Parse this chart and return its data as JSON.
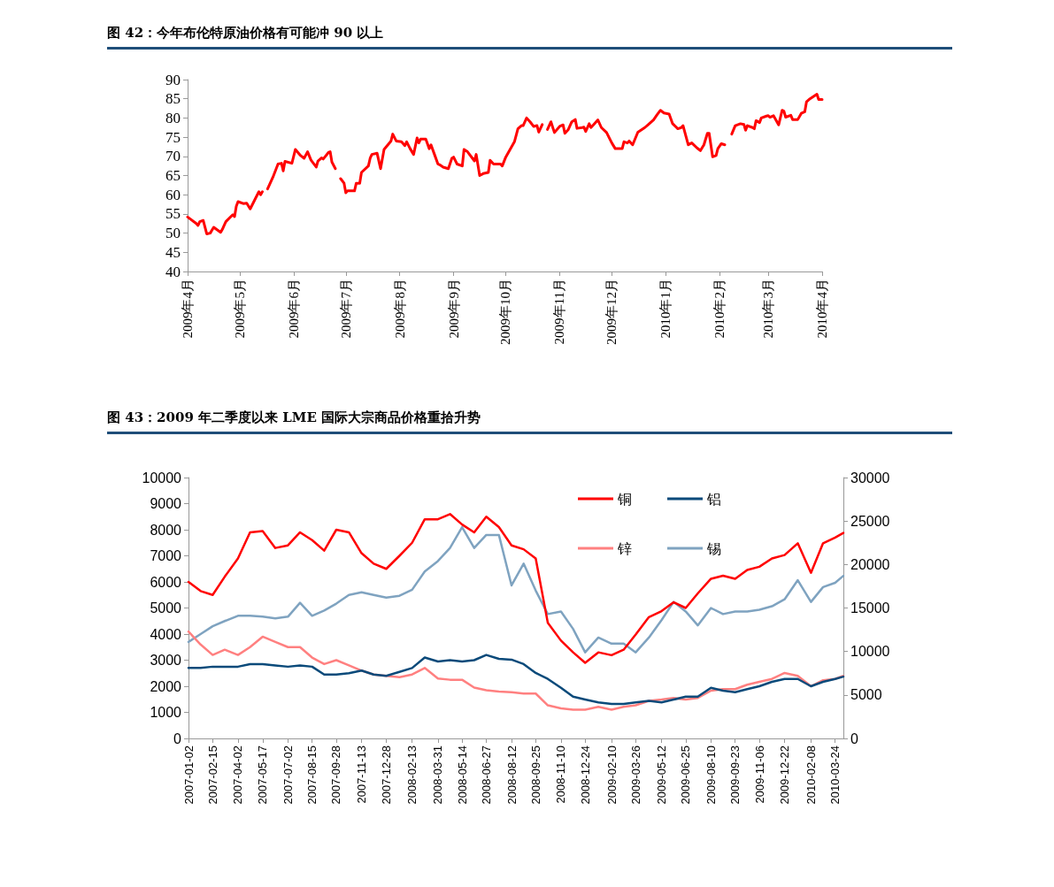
{
  "chart_data": [
    {
      "type": "line",
      "title": "图 42：今年布伦特原油价格有可能冲 90 以上",
      "marker": "none",
      "x": [
        "2009-04-01",
        "2009-04-06",
        "2009-04-07",
        "2009-04-08",
        "2009-04-10",
        "2009-04-12",
        "2009-04-14",
        "2009-04-16",
        "2009-04-20",
        "2009-04-21",
        "2009-04-23",
        "2009-04-27",
        "2009-04-28",
        "2009-04-29",
        "2009-04-30",
        "2009-05-03",
        "2009-05-05",
        "2009-05-07",
        "2009-05-10",
        "2009-05-12",
        "2009-05-13",
        "2009-05-14",
        "2009-05-16",
        "2009-05-17",
        "2009-05-20",
        "2009-05-23",
        "2009-05-25",
        "2009-05-26",
        "2009-05-27",
        "2009-05-31",
        "2009-06-02",
        "2009-06-05",
        "2009-06-07",
        "2009-06-09",
        "2009-06-11",
        "2009-06-14",
        "2009-06-15",
        "2009-06-17",
        "2009-06-18",
        "2009-06-21",
        "2009-06-22",
        "2009-06-23",
        "2009-06-25",
        "2009-06-27",
        "2009-06-28",
        "2009-06-30",
        "2009-07-01",
        "2009-07-02",
        "2009-07-06",
        "2009-07-07",
        "2009-07-09",
        "2009-07-10",
        "2009-07-14",
        "2009-07-15",
        "2009-07-16",
        "2009-07-19",
        "2009-07-21",
        "2009-07-23",
        "2009-07-27",
        "2009-07-28",
        "2009-07-30",
        "2009-08-02",
        "2009-08-04",
        "2009-08-05",
        "2009-08-07",
        "2009-08-09",
        "2009-08-11",
        "2009-08-12",
        "2009-08-13",
        "2009-08-16",
        "2009-08-18",
        "2009-08-19",
        "2009-08-21",
        "2009-08-23",
        "2009-08-24",
        "2009-08-26",
        "2009-08-29",
        "2009-08-31",
        "2009-09-01",
        "2009-09-03",
        "2009-09-06",
        "2009-09-07",
        "2009-09-09",
        "2009-09-13",
        "2009-09-14",
        "2009-09-16",
        "2009-09-18",
        "2009-09-21",
        "2009-09-22",
        "2009-09-24",
        "2009-09-28",
        "2009-09-29",
        "2009-10-01",
        "2009-10-06",
        "2009-10-08",
        "2009-10-10",
        "2009-10-11",
        "2009-10-13",
        "2009-10-15",
        "2009-10-17",
        "2009-10-19",
        "2009-10-20",
        "2009-10-22",
        "2009-10-24",
        "2009-10-25",
        "2009-10-27",
        "2009-10-29",
        "2009-11-01",
        "2009-11-03",
        "2009-11-04",
        "2009-11-06",
        "2009-11-08",
        "2009-11-10",
        "2009-11-11",
        "2009-11-14",
        "2009-11-15",
        "2009-11-16",
        "2009-11-18",
        "2009-11-19",
        "2009-11-21",
        "2009-11-23",
        "2009-11-25",
        "2009-11-28",
        "2009-12-01",
        "2009-12-03",
        "2009-12-07",
        "2009-12-08",
        "2009-12-10",
        "2009-12-11",
        "2009-12-13",
        "2009-12-16",
        "2009-12-20",
        "2009-12-22",
        "2009-12-25",
        "2009-12-27",
        "2009-12-29",
        "2009-12-31",
        "2010-01-03",
        "2010-01-05",
        "2010-01-08",
        "2010-01-10",
        "2010-01-11",
        "2010-01-14",
        "2010-01-16",
        "2010-01-19",
        "2010-01-21",
        "2010-01-23",
        "2010-01-25",
        "2010-01-26",
        "2010-01-28",
        "2010-01-30",
        "2010-01-31",
        "2010-02-02",
        "2010-02-04",
        "2010-02-06",
        "2010-02-08",
        "2010-02-10",
        "2010-02-13",
        "2010-02-15",
        "2010-02-16",
        "2010-02-17",
        "2010-02-20",
        "2010-02-21",
        "2010-02-22",
        "2010-02-24",
        "2010-02-25",
        "2010-02-28",
        "2010-03-01",
        "2010-03-02",
        "2010-03-04",
        "2010-03-07",
        "2010-03-09",
        "2010-03-10",
        "2010-03-11",
        "2010-03-14",
        "2010-03-15",
        "2010-03-18",
        "2010-03-20",
        "2010-03-22",
        "2010-03-23",
        "2010-03-25",
        "2010-03-29",
        "2010-03-30",
        "2010-04-01"
      ],
      "series": [
        {
          "color": "#ff0000",
          "values": [
            54.2,
            52.5,
            52,
            53,
            53.3,
            49.8,
            50,
            51.5,
            50.2,
            51,
            53,
            54.8,
            54.3,
            57,
            58.2,
            57.7,
            57.8,
            56.3,
            59,
            60.8,
            60,
            60.8,
            null,
            61.5,
            64.5,
            68,
            68.2,
            66.2,
            68.7,
            68.2,
            71.8,
            70.2,
            69.5,
            71.2,
            69,
            67.2,
            68.8,
            69.6,
            69.3,
            71,
            71.2,
            68.5,
            66.8,
            null,
            64.2,
            63,
            60.5,
            61,
            61,
            63,
            63,
            65.8,
            67.5,
            69.5,
            70.5,
            70.8,
            66.8,
            71.8,
            74,
            75.8,
            74,
            73.8,
            72.8,
            73.8,
            72,
            70.5,
            74.8,
            73.5,
            74.5,
            74.5,
            72,
            73,
            70.5,
            68,
            67.8,
            67.2,
            66.8,
            69.5,
            69.8,
            68,
            67.5,
            71.8,
            71.2,
            68.8,
            70.5,
            65,
            65.5,
            65.8,
            69,
            68,
            68,
            67.5,
            69.8,
            73.8,
            77.2,
            78,
            78,
            80,
            79,
            77.8,
            78,
            76.3,
            78.3,
            null,
            77,
            79,
            76.2,
            77.8,
            78.2,
            76,
            77,
            79,
            79.6,
            77.3,
            77.5,
            77.6,
            76.5,
            78.5,
            77.5,
            78.5,
            79.5,
            77.5,
            76.2,
            73.5,
            72,
            72,
            73.8,
            73.5,
            74,
            73,
            76.3,
            77.5,
            78.3,
            79.5,
            80.8,
            82,
            81.3,
            81,
            78.5,
            77.2,
            77.5,
            78,
            73,
            73.5,
            72.2,
            71.5,
            73,
            76,
            76,
            69.9,
            70.2,
            72,
            73.3,
            73,
            null,
            75.8,
            78,
            78.5,
            78.3,
            76.8,
            78,
            77.5,
            77.2,
            79.3,
            78.8,
            80,
            80.5,
            80.6,
            80.2,
            80.6,
            78.2,
            82,
            81.8,
            80.2,
            80.7,
            79.6,
            79.6,
            81.2,
            81.6,
            84.2,
            85,
            86.2,
            84.8,
            84.8
          ]
        }
      ],
      "xlim": [
        "2009-04-01",
        "2010-04-01"
      ],
      "xticks": [
        {
          "value": "2009-04-01",
          "label": "2009年4月"
        },
        {
          "value": "2009-05-01",
          "label": "2009年5月"
        },
        {
          "value": "2009-06-01",
          "label": "2009年6月"
        },
        {
          "value": "2009-07-01",
          "label": "2009年7月"
        },
        {
          "value": "2009-08-01",
          "label": "2009年8月"
        },
        {
          "value": "2009-09-01",
          "label": "2009年9月"
        },
        {
          "value": "2009-10-01",
          "label": "2009年10月"
        },
        {
          "value": "2009-11-01",
          "label": "2009年11月"
        },
        {
          "value": "2009-12-01",
          "label": "2009年12月"
        },
        {
          "value": "2010-01-01",
          "label": "2010年1月"
        },
        {
          "value": "2010-02-01",
          "label": "2010年2月"
        },
        {
          "value": "2010-03-01",
          "label": "2010年3月"
        },
        {
          "value": "2010-04-01",
          "label": "2010年4月"
        }
      ],
      "ylim": [
        40,
        90
      ],
      "yticks": [
        40,
        45,
        50,
        55,
        60,
        65,
        70,
        75,
        80,
        85,
        90
      ]
    },
    {
      "type": "line",
      "title": "图 43：2009 年二季度以来 LME 国际大宗商品价格重拾升势",
      "marker": "none",
      "legend": "top right",
      "x": [
        "2007-01-02",
        "2007-01-24",
        "2007-02-15",
        "2007-03-09",
        "2007-04-02",
        "2007-04-24",
        "2007-05-17",
        "2007-06-09",
        "2007-07-02",
        "2007-07-24",
        "2007-08-15",
        "2007-09-06",
        "2007-09-28",
        "2007-10-21",
        "2007-11-13",
        "2007-12-05",
        "2007-12-28",
        "2008-01-21",
        "2008-02-13",
        "2008-03-07",
        "2008-03-31",
        "2008-04-22",
        "2008-05-14",
        "2008-06-05",
        "2008-06-27",
        "2008-07-20",
        "2008-08-12",
        "2008-09-03",
        "2008-09-25",
        "2008-10-17",
        "2008-11-10",
        "2008-12-02",
        "2008-12-24",
        "2009-01-17",
        "2009-02-10",
        "2009-03-04",
        "2009-03-26",
        "2009-04-19",
        "2009-05-12",
        "2009-06-03",
        "2009-06-25",
        "2009-07-17",
        "2009-08-10",
        "2009-09-01",
        "2009-09-23",
        "2009-10-15",
        "2009-11-06",
        "2009-11-29",
        "2009-12-22",
        "2010-01-15",
        "2010-02-08",
        "2010-03-02",
        "2010-03-24",
        "2010-04-08"
      ],
      "series": [
        {
          "name": "铜",
          "color": "#ff0000",
          "values": [
            6000,
            5650,
            5500,
            6200,
            6900,
            7900,
            7950,
            7300,
            7400,
            7900,
            7600,
            7200,
            8000,
            7900,
            7100,
            6700,
            6500,
            7000,
            7500,
            8400,
            8400,
            8600,
            8200,
            7900,
            8500,
            8100,
            7400,
            7250,
            6900,
            4430,
            3750,
            3300,
            2900,
            3300,
            3190,
            3400,
            3980,
            4650,
            4880,
            5220,
            5000,
            5560,
            6120,
            6240,
            6120,
            6460,
            6580,
            6900,
            7030,
            7480,
            6350,
            7480,
            7700,
            7880
          ]
        },
        {
          "name": "铝",
          "color": "#0a4a7a",
          "values": [
            2700,
            2700,
            2750,
            2750,
            2750,
            2850,
            2850,
            2800,
            2750,
            2800,
            2750,
            2450,
            2450,
            2500,
            2600,
            2450,
            2400,
            2550,
            2700,
            3100,
            2950,
            3000,
            2950,
            3000,
            3200,
            3050,
            3020,
            2850,
            2510,
            2280,
            1940,
            1600,
            1490,
            1380,
            1320,
            1320,
            1380,
            1440,
            1380,
            1490,
            1600,
            1600,
            1940,
            1830,
            1770,
            1890,
            2000,
            2170,
            2280,
            2280,
            2000,
            2170,
            2280,
            2370
          ]
        },
        {
          "name": "锌",
          "color": "#ff8080",
          "values": [
            4100,
            3600,
            3200,
            3400,
            3200,
            3500,
            3900,
            3700,
            3500,
            3500,
            3100,
            2850,
            3000,
            2800,
            2600,
            2450,
            2400,
            2350,
            2450,
            2700,
            2300,
            2250,
            2250,
            1950,
            1850,
            1800,
            1770,
            1720,
            1720,
            1270,
            1150,
            1100,
            1100,
            1210,
            1100,
            1210,
            1270,
            1440,
            1490,
            1550,
            1490,
            1550,
            1830,
            1890,
            1890,
            2060,
            2170,
            2280,
            2510,
            2400,
            2000,
            2230,
            2280,
            2400
          ]
        },
        {
          "name": "锡",
          "color": "#7fa3c0",
          "axis": "y2",
          "values": [
            11100,
            12000,
            12900,
            13500,
            14100,
            14100,
            14000,
            13800,
            14000,
            15600,
            14100,
            14700,
            15500,
            16500,
            16800,
            16500,
            16200,
            16400,
            17100,
            19200,
            20400,
            21900,
            24300,
            21900,
            23400,
            23400,
            17600,
            20100,
            17000,
            14300,
            14600,
            12600,
            9900,
            11600,
            10900,
            10900,
            9900,
            11600,
            13600,
            15700,
            14600,
            13000,
            15000,
            14300,
            14600,
            14600,
            14800,
            15200,
            16000,
            18200,
            15700,
            17400,
            17900,
            18700
          ]
        }
      ],
      "xlim": [
        "2007-01-02",
        "2010-04-08"
      ],
      "xticks": [
        "2007-01-02",
        "2007-02-15",
        "2007-04-02",
        "2007-05-17",
        "2007-07-02",
        "2007-08-15",
        "2007-09-28",
        "2007-11-13",
        "2007-12-28",
        "2008-02-13",
        "2008-03-31",
        "2008-05-14",
        "2008-06-27",
        "2008-08-12",
        "2008-09-25",
        "2008-11-10",
        "2008-12-24",
        "2009-02-10",
        "2009-03-26",
        "2009-05-12",
        "2009-06-25",
        "2009-08-10",
        "2009-09-23",
        "2009-11-06",
        "2009-12-22",
        "2010-02-08",
        "2010-03-24"
      ],
      "ylim": [
        0,
        10000
      ],
      "yticks": [
        0,
        1000,
        2000,
        3000,
        4000,
        5000,
        6000,
        7000,
        8000,
        9000,
        10000
      ],
      "y2lim": [
        0,
        30000
      ],
      "y2ticks": [
        0,
        5000,
        10000,
        15000,
        20000,
        25000,
        30000
      ]
    }
  ]
}
